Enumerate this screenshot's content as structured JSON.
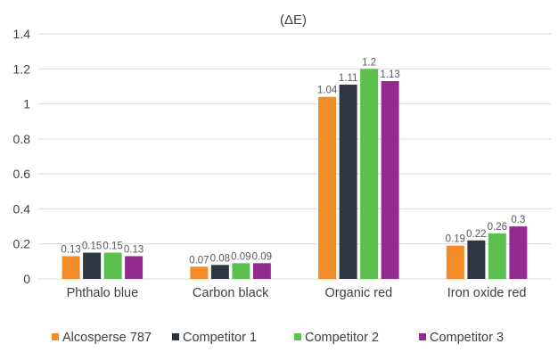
{
  "chart_data": {
    "type": "bar",
    "title": "(ΔE)",
    "categories": [
      "Phthalo blue",
      "Carbon black",
      "Organic red",
      "Iron oxide red"
    ],
    "ylim": [
      0,
      1.4
    ],
    "yticks": [
      0,
      0.2,
      0.4,
      0.6,
      0.8,
      1,
      1.2,
      1.4
    ],
    "grid": true,
    "legend_position": "bottom",
    "series": [
      {
        "name": "Alcosperse 787",
        "color": "#f28c28",
        "values": [
          0.13,
          0.07,
          1.04,
          0.19
        ]
      },
      {
        "name": "Competitor 1",
        "color": "#2e3640",
        "values": [
          0.15,
          0.08,
          1.11,
          0.22
        ]
      },
      {
        "name": "Competitor 2",
        "color": "#5cc04e",
        "values": [
          0.15,
          0.09,
          1.2,
          0.26
        ]
      },
      {
        "name": "Competitor 3",
        "color": "#932b8f",
        "values": [
          0.13,
          0.09,
          1.13,
          0.3
        ]
      }
    ]
  }
}
